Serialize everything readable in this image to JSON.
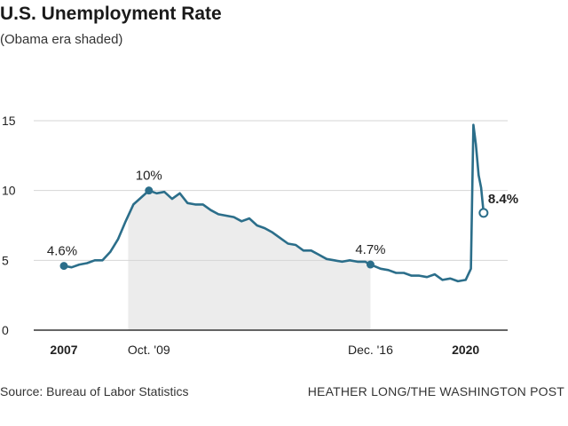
{
  "header": {
    "title": "U.S. Unemployment Rate",
    "subtitle": "(Obama era shaded)"
  },
  "footer": {
    "source": "Source: Bureau of Labor Statistics",
    "credit": "HEATHER LONG/THE WASHINGTON POST"
  },
  "colors": {
    "line": "#2b6e8a",
    "shade": "#ececec",
    "grid": "#d6d6d6"
  },
  "chart_data": {
    "type": "line",
    "title": "U.S. Unemployment Rate",
    "subtitle": "(Obama era shaded)",
    "xlim": [
      2007.0,
      2020.67
    ],
    "ylim": [
      0,
      15
    ],
    "yticks": [
      0,
      5,
      10,
      15
    ],
    "xticks": [
      {
        "label": "2007",
        "x": 2007.0,
        "bold": true
      },
      {
        "label": "Oct. '09",
        "x": 2009.75,
        "bold": false
      },
      {
        "label": "Dec. '16",
        "x": 2016.92,
        "bold": false
      },
      {
        "label": "2020",
        "x": 2020.0,
        "bold": true
      }
    ],
    "shaded_region": {
      "label": "Obama era",
      "x0": 2009.08,
      "x1": 2016.92
    },
    "grid": "horizontal",
    "series": [
      {
        "points": [
          [
            2007.0,
            4.6
          ],
          [
            2007.25,
            4.5
          ],
          [
            2007.5,
            4.7
          ],
          [
            2007.75,
            4.8
          ],
          [
            2008.0,
            5.0
          ],
          [
            2008.25,
            5.0
          ],
          [
            2008.5,
            5.6
          ],
          [
            2008.75,
            6.5
          ],
          [
            2009.0,
            7.8
          ],
          [
            2009.25,
            9.0
          ],
          [
            2009.5,
            9.5
          ],
          [
            2009.75,
            10.0
          ],
          [
            2010.0,
            9.8
          ],
          [
            2010.25,
            9.9
          ],
          [
            2010.5,
            9.4
          ],
          [
            2010.75,
            9.8
          ],
          [
            2011.0,
            9.1
          ],
          [
            2011.25,
            9.0
          ],
          [
            2011.5,
            9.0
          ],
          [
            2011.75,
            8.6
          ],
          [
            2012.0,
            8.3
          ],
          [
            2012.25,
            8.2
          ],
          [
            2012.5,
            8.1
          ],
          [
            2012.75,
            7.8
          ],
          [
            2013.0,
            8.0
          ],
          [
            2013.25,
            7.5
          ],
          [
            2013.5,
            7.3
          ],
          [
            2013.75,
            7.0
          ],
          [
            2014.0,
            6.6
          ],
          [
            2014.25,
            6.2
          ],
          [
            2014.5,
            6.1
          ],
          [
            2014.75,
            5.7
          ],
          [
            2015.0,
            5.7
          ],
          [
            2015.25,
            5.4
          ],
          [
            2015.5,
            5.1
          ],
          [
            2015.75,
            5.0
          ],
          [
            2016.0,
            4.9
          ],
          [
            2016.25,
            5.0
          ],
          [
            2016.5,
            4.9
          ],
          [
            2016.75,
            4.9
          ],
          [
            2016.92,
            4.7
          ],
          [
            2017.25,
            4.4
          ],
          [
            2017.5,
            4.3
          ],
          [
            2017.75,
            4.1
          ],
          [
            2018.0,
            4.1
          ],
          [
            2018.25,
            3.9
          ],
          [
            2018.5,
            3.9
          ],
          [
            2018.75,
            3.8
          ],
          [
            2019.0,
            4.0
          ],
          [
            2019.25,
            3.6
          ],
          [
            2019.5,
            3.7
          ],
          [
            2019.75,
            3.5
          ],
          [
            2020.0,
            3.6
          ],
          [
            2020.17,
            4.4
          ],
          [
            2020.25,
            14.7
          ],
          [
            2020.33,
            13.3
          ],
          [
            2020.42,
            11.1
          ],
          [
            2020.5,
            10.2
          ],
          [
            2020.58,
            8.4
          ]
        ]
      }
    ],
    "annotations": [
      {
        "text": "4.6%",
        "x": 2007.0,
        "y": 4.6,
        "marker": "filled",
        "bold": false
      },
      {
        "text": "10%",
        "x": 2009.75,
        "y": 10.0,
        "marker": "filled",
        "bold": false
      },
      {
        "text": "4.7%",
        "x": 2016.92,
        "y": 4.7,
        "marker": "filled",
        "bold": false
      },
      {
        "text": "8.4%",
        "x": 2020.58,
        "y": 8.4,
        "marker": "open",
        "bold": true
      }
    ]
  }
}
